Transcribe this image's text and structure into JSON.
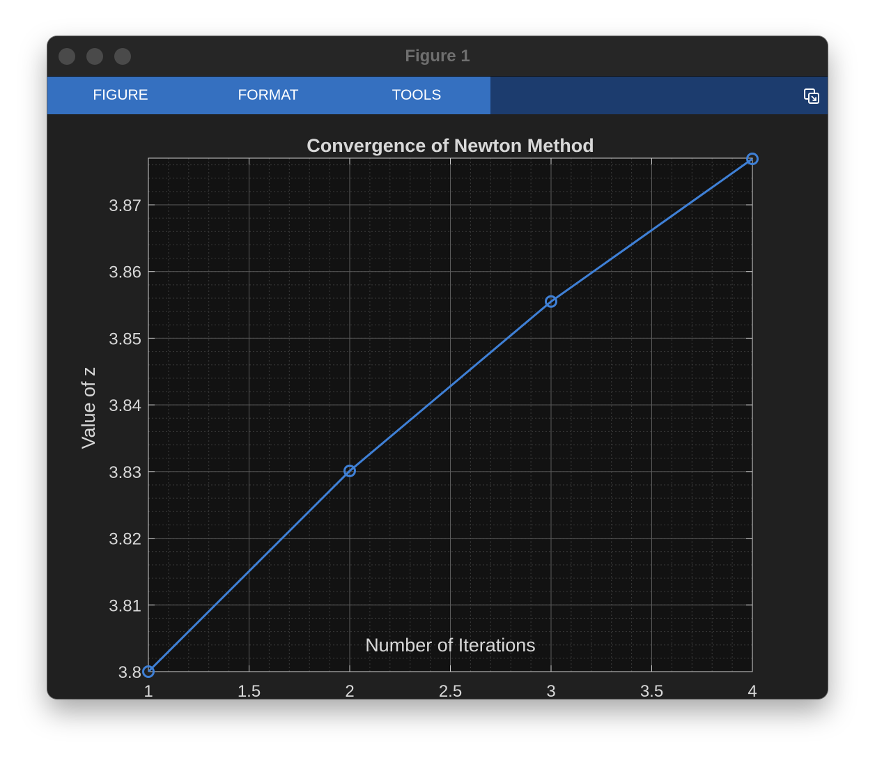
{
  "window": {
    "title": "Figure 1"
  },
  "toolstrip": {
    "tabs": [
      {
        "label": "FIGURE"
      },
      {
        "label": "FORMAT"
      },
      {
        "label": "TOOLS"
      }
    ],
    "undock_icon": "undock-icon"
  },
  "colors": {
    "series": "#3f80d6",
    "background": "#202020",
    "axes_background": "#121212",
    "text": "#d8d8d8",
    "tab_active": "#3570c0",
    "toolstrip": "#1c3c6e"
  },
  "chart_data": {
    "type": "line",
    "title": "Convergence of Newton Method",
    "xlabel": "Number of Iterations",
    "ylabel": "Value of z",
    "xlim": [
      1,
      4
    ],
    "ylim": [
      3.8,
      3.877
    ],
    "xticks": [
      1,
      1.5,
      2,
      2.5,
      3,
      3.5,
      4
    ],
    "xtick_labels": [
      "1",
      "1.5",
      "2",
      "2.5",
      "3",
      "3.5",
      "4"
    ],
    "yticks": [
      3.8,
      3.81,
      3.82,
      3.83,
      3.84,
      3.85,
      3.86,
      3.87
    ],
    "ytick_labels": [
      "3.8",
      "3.81",
      "3.82",
      "3.83",
      "3.84",
      "3.85",
      "3.86",
      "3.87"
    ],
    "grid": true,
    "minor_grid": true,
    "marker": "circle",
    "series": [
      {
        "x": [
          1,
          2,
          3,
          4
        ],
        "y": [
          3.8,
          3.8301,
          3.8555,
          3.8769
        ]
      }
    ]
  }
}
